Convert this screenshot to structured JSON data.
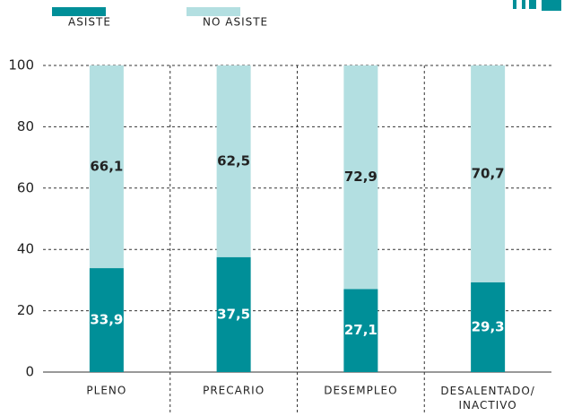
{
  "chart_data": {
    "type": "stacked_bar",
    "categories": [
      "PLENO",
      "PRECARIO",
      "DESEMPLEO",
      "DESALENTADO/ INACTIVO"
    ],
    "series": [
      {
        "name": "ASISTE",
        "color": "#008f98",
        "values": [
          33.9,
          37.5,
          27.1,
          29.3
        ],
        "value_labels": [
          "33,9",
          "37,5",
          "27,1",
          "29,3"
        ]
      },
      {
        "name": "NO ASISTE",
        "color": "#b3dfe1",
        "values": [
          66.1,
          62.5,
          72.9,
          70.7
        ],
        "value_labels": [
          "66,1",
          "62,5",
          "72,9",
          "70,7"
        ]
      }
    ],
    "ylim": [
      0,
      100
    ],
    "yticks": [
      0,
      20,
      40,
      60,
      80,
      100
    ],
    "grid": true
  }
}
